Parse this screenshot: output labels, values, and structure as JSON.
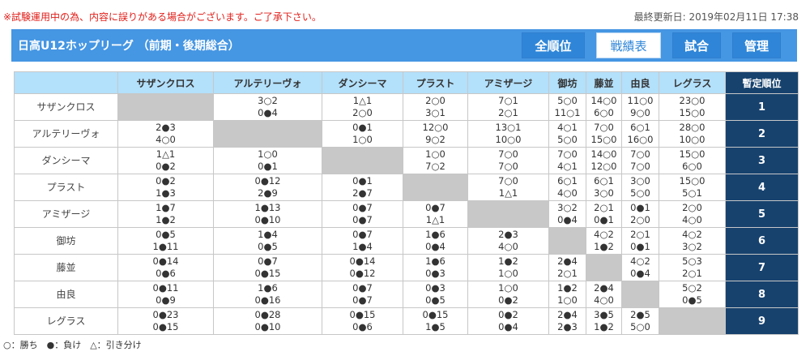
{
  "notice": "※試験運用中の為、内容に誤りがある場合がございます。ご了承下さい。",
  "last_updated": "最終更新日: 2019年02月11日 17:38",
  "header": {
    "title": "日高U12ホップリーグ （前期・後期総合）",
    "nav": [
      "全順位",
      "戦績表",
      "試合",
      "管理"
    ],
    "active": 1
  },
  "table": {
    "columns": [
      "サザンクロス",
      "アルテリーヴォ",
      "ダンシーマ",
      "プラスト",
      "アミザージ",
      "御坊",
      "藤並",
      "由良",
      "レグラス"
    ],
    "rank_header": "暫定順位",
    "rows": [
      {
        "team": "サザンクロス",
        "rank": "1",
        "cells": [
          null,
          [
            "3○2",
            "0●4"
          ],
          [
            "1△1",
            "2○0"
          ],
          [
            "2○0",
            "3○1"
          ],
          [
            "7○1",
            "2○1"
          ],
          [
            "5○0",
            "11○1"
          ],
          [
            "14○0",
            "6○0"
          ],
          [
            "11○0",
            "9○0"
          ],
          [
            "23○0",
            "15○0"
          ]
        ]
      },
      {
        "team": "アルテリーヴォ",
        "rank": "2",
        "cells": [
          [
            "2●3",
            "4○0"
          ],
          null,
          [
            "0●1",
            "1○0"
          ],
          [
            "12○0",
            "9○2"
          ],
          [
            "13○1",
            "10○0"
          ],
          [
            "4○1",
            "5○0"
          ],
          [
            "7○0",
            "15○0"
          ],
          [
            "6○1",
            "16○0"
          ],
          [
            "28○0",
            "10○0"
          ]
        ]
      },
      {
        "team": "ダンシーマ",
        "rank": "3",
        "cells": [
          [
            "1△1",
            "0●2"
          ],
          [
            "1○0",
            "0●1"
          ],
          null,
          [
            "1○0",
            "7○2"
          ],
          [
            "7○0",
            "7○0"
          ],
          [
            "7○0",
            "4○1"
          ],
          [
            "14○0",
            "12○0"
          ],
          [
            "7○0",
            "7○0"
          ],
          [
            "15○0",
            "6○0"
          ]
        ]
      },
      {
        "team": "プラスト",
        "rank": "4",
        "cells": [
          [
            "0●2",
            "1●3"
          ],
          [
            "0●12",
            "2●9"
          ],
          [
            "0●1",
            "2●7"
          ],
          null,
          [
            "7○0",
            "1△1"
          ],
          [
            "6○1",
            "4○0"
          ],
          [
            "6○1",
            "3○0"
          ],
          [
            "3○0",
            "5○0"
          ],
          [
            "15○0",
            "5○1"
          ]
        ]
      },
      {
        "team": "アミザージ",
        "rank": "5",
        "cells": [
          [
            "1●7",
            "1●2"
          ],
          [
            "1●13",
            "0●10"
          ],
          [
            "0●7",
            "0●7"
          ],
          [
            "0●7",
            "1△1"
          ],
          null,
          [
            "3○2",
            "0●4"
          ],
          [
            "2○1",
            "0●1"
          ],
          [
            "0●1",
            "2○0"
          ],
          [
            "2○0",
            "4○0"
          ]
        ]
      },
      {
        "team": "御坊",
        "rank": "6",
        "cells": [
          [
            "0●5",
            "1●11"
          ],
          [
            "1●4",
            "0●5"
          ],
          [
            "0●7",
            "1●4"
          ],
          [
            "1●6",
            "0●4"
          ],
          [
            "2●3",
            "4○0"
          ],
          null,
          [
            "4○2",
            "1●2"
          ],
          [
            "2○1",
            "0●1"
          ],
          [
            "4○2",
            "3○2"
          ]
        ]
      },
      {
        "team": "藤並",
        "rank": "7",
        "cells": [
          [
            "0●14",
            "0●6"
          ],
          [
            "0●7",
            "0●15"
          ],
          [
            "0●14",
            "0●12"
          ],
          [
            "1●6",
            "0●3"
          ],
          [
            "1●2",
            "1○0"
          ],
          [
            "2●4",
            "2○1"
          ],
          null,
          [
            "4○2",
            "0●4"
          ],
          [
            "5○3",
            "2○1"
          ]
        ]
      },
      {
        "team": "由良",
        "rank": "8",
        "cells": [
          [
            "0●11",
            "0●9"
          ],
          [
            "1●6",
            "0●16"
          ],
          [
            "0●7",
            "0●7"
          ],
          [
            "0●3",
            "0●5"
          ],
          [
            "1○0",
            "0●2"
          ],
          [
            "1●2",
            "1○0"
          ],
          [
            "2●4",
            "4○0"
          ],
          null,
          [
            "5○2",
            "0●5"
          ]
        ]
      },
      {
        "team": "レグラス",
        "rank": "9",
        "cells": [
          [
            "0●23",
            "0●15"
          ],
          [
            "0●28",
            "0●10"
          ],
          [
            "0●15",
            "0●6"
          ],
          [
            "0●15",
            "1●5"
          ],
          [
            "0●2",
            "0●4"
          ],
          [
            "2●4",
            "2●3"
          ],
          [
            "3●5",
            "1●2"
          ],
          [
            "2●5",
            "5○0"
          ],
          null
        ]
      }
    ]
  },
  "legend": "○：勝ち　●：負け　△：引き分け"
}
